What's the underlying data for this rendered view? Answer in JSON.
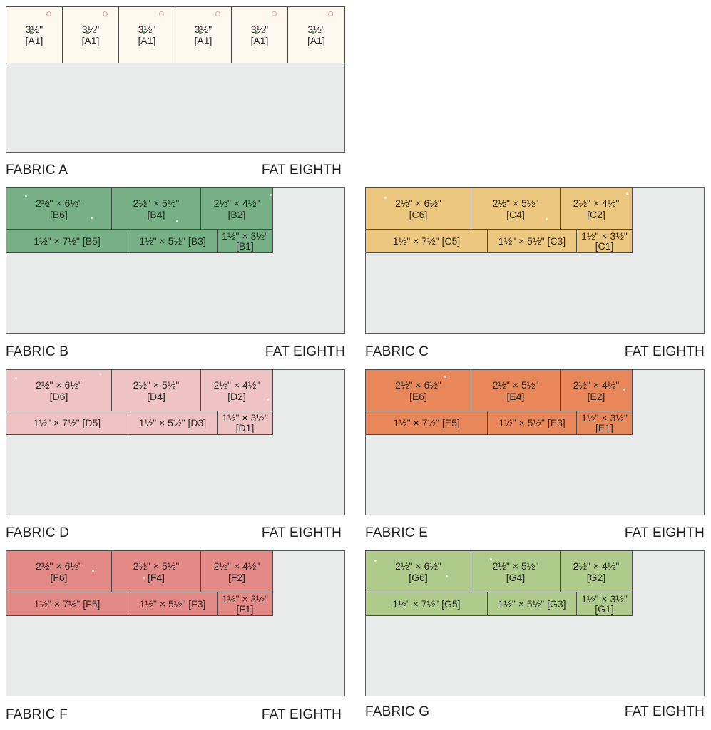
{
  "fabrics": [
    {
      "key": "a",
      "name": "FABRIC A",
      "size": "FAT EIGHTH",
      "color": "#fdf9ef",
      "pieces_row1": [
        {
          "dim": "3½\"",
          "label": "[A1]"
        },
        {
          "dim": "3½\"",
          "label": "[A1]"
        },
        {
          "dim": "3½\"",
          "label": "[A1]"
        },
        {
          "dim": "3½\"",
          "label": "[A1]"
        },
        {
          "dim": "3½\"",
          "label": "[A1]"
        },
        {
          "dim": "3½\"",
          "label": "[A1]"
        }
      ]
    },
    {
      "key": "b",
      "name": "FABRIC B",
      "size": "FAT EIGHTH",
      "color": "#76b084",
      "row1": [
        {
          "dim": "2½\" × 6½\"",
          "label": "[B6]"
        },
        {
          "dim": "2½\" × 5½\"",
          "label": "[B4]"
        },
        {
          "dim": "2½\" × 4½\"",
          "label": "[B2]"
        }
      ],
      "row2": [
        "1½\" × 7½\" [B5]",
        "1½\" × 5½\" [B3]"
      ],
      "small": {
        "dim": "1½\" × 3½\"",
        "label": "[B1]"
      }
    },
    {
      "key": "c",
      "name": "FABRIC C",
      "size": "FAT EIGHTH",
      "color": "#ecc780",
      "row1": [
        {
          "dim": "2½\" × 6½\"",
          "label": "[C6]"
        },
        {
          "dim": "2½\" × 5½\"",
          "label": "[C4]"
        },
        {
          "dim": "2½\" × 4½\"",
          "label": "[C2]"
        }
      ],
      "row2": [
        "1½\" × 7½\" [C5]",
        "1½\" × 5½\" [C3]"
      ],
      "small": {
        "dim": "1½\" × 3½\"",
        "label": "[C1]"
      }
    },
    {
      "key": "d",
      "name": "FABRIC D",
      "size": "FAT EIGHTH",
      "color": "#efc3c3",
      "row1": [
        {
          "dim": "2½\" × 6½\"",
          "label": "[D6]"
        },
        {
          "dim": "2½\" × 5½\"",
          "label": "[D4]"
        },
        {
          "dim": "2½\" × 4½\"",
          "label": "[D2]"
        }
      ],
      "row2": [
        "1½\" × 7½\" [D5]",
        "1½\" × 5½\" [D3]"
      ],
      "small": {
        "dim": "1½\" × 3½\"",
        "label": "[D1]"
      }
    },
    {
      "key": "e",
      "name": "FABRIC E",
      "size": "FAT EIGHTH",
      "color": "#e8875a",
      "row1": [
        {
          "dim": "2½\" × 6½\"",
          "label": "[E6]"
        },
        {
          "dim": "2½\" × 5½\"",
          "label": "[E4]"
        },
        {
          "dim": "2½\" × 4½\"",
          "label": "[E2]"
        }
      ],
      "row2": [
        "1½\" × 7½\" [E5]",
        "1½\" × 5½\" [E3]"
      ],
      "small": {
        "dim": "1½\" × 3½\"",
        "label": "[E1]"
      }
    },
    {
      "key": "f",
      "name": "FABRIC F",
      "size": "FAT EIGHTH",
      "color": "#e48a86",
      "row1": [
        {
          "dim": "2½\" × 6½\"",
          "label": "[F6]"
        },
        {
          "dim": "2½\" × 5½\"",
          "label": "[F4]"
        },
        {
          "dim": "2½\" × 4½\"",
          "label": "[F2]"
        }
      ],
      "row2": [
        "1½\" × 7½\" [F5]",
        "1½\" × 5½\" [F3]"
      ],
      "small": {
        "dim": "1½\" × 3½\"",
        "label": "[F1]"
      }
    },
    {
      "key": "g",
      "name": "FABRIC G",
      "size": "FAT EIGHTH",
      "color": "#aecb8c",
      "row1": [
        {
          "dim": "2½\" × 6½\"",
          "label": "[G6]"
        },
        {
          "dim": "2½\" × 5½\"",
          "label": "[G4]"
        },
        {
          "dim": "2½\" × 4½\"",
          "label": "[G2]"
        }
      ],
      "row2": [
        "1½\" × 7½\" [G5]",
        "1½\" × 5½\" [G3]"
      ],
      "small": {
        "dim": "1½\" × 3½\"",
        "label": "[G1]"
      }
    }
  ]
}
